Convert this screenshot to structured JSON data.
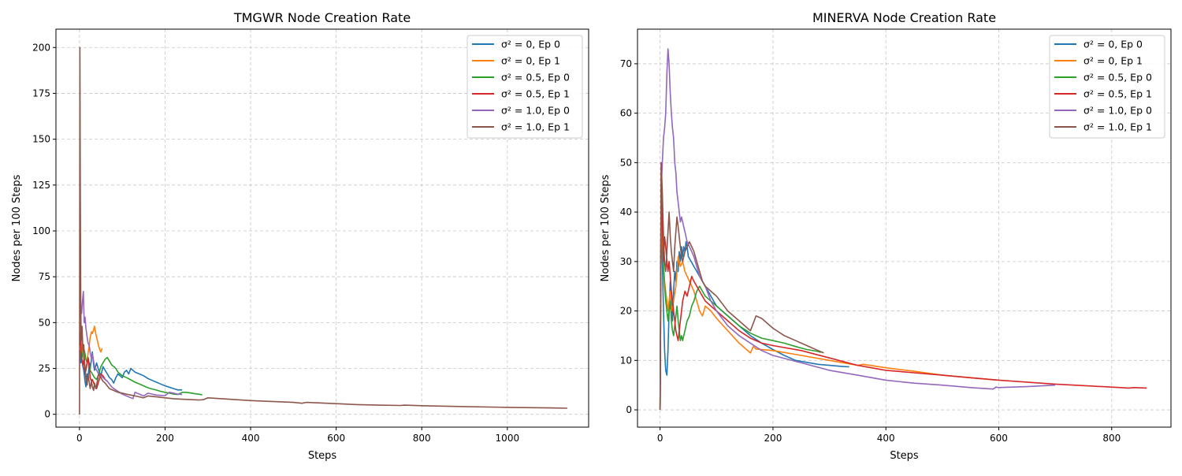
{
  "chart_data": [
    {
      "type": "line",
      "title": "TMGWR Node Creation Rate",
      "xlabel": "Steps",
      "ylabel": "Nodes per 100 Steps",
      "xlim": [
        -55,
        1190
      ],
      "ylim": [
        -7,
        210
      ],
      "xticks": [
        0,
        200,
        400,
        600,
        800,
        1000
      ],
      "yticks": [
        0,
        25,
        50,
        75,
        100,
        125,
        150,
        175,
        200
      ],
      "grid": true,
      "legend_position": "top-right",
      "series": [
        {
          "name": "σ² = 0, Ep 0",
          "color": "#1f77b4",
          "x": [
            1,
            3,
            5,
            8,
            10,
            13,
            15,
            18,
            20,
            23,
            25,
            28,
            30,
            33,
            35,
            40,
            45,
            50,
            55,
            60,
            65,
            70,
            75,
            80,
            85,
            90,
            95,
            100,
            105,
            110,
            115,
            120,
            125,
            130,
            140,
            150,
            160,
            170,
            180,
            190,
            200,
            210,
            220,
            230,
            240
          ],
          "y": [
            35,
            28,
            31,
            26,
            24,
            18,
            15,
            22,
            20,
            28,
            25,
            30,
            34,
            27,
            24,
            28,
            24,
            21,
            26,
            24,
            22,
            20,
            19,
            17,
            20,
            22,
            21,
            20,
            23,
            24,
            22,
            25,
            24,
            23,
            22,
            21,
            19.5,
            18.5,
            17.5,
            16.5,
            15.5,
            14.8,
            14,
            13.3,
            13.3
          ]
        },
        {
          "name": "σ² = 0, Ep 1",
          "color": "#ff7f0e",
          "x": [
            1,
            3,
            5,
            8,
            10,
            13,
            15,
            18,
            20,
            23,
            25,
            28,
            30,
            33,
            35,
            38,
            40,
            43,
            45,
            48,
            50,
            53
          ],
          "y": [
            50,
            42,
            38,
            33,
            30,
            26,
            24,
            29,
            33,
            38,
            42,
            45,
            44,
            46,
            48,
            44,
            42,
            39,
            37,
            35,
            34,
            36
          ]
        },
        {
          "name": "σ² = 0.5, Ep 0",
          "color": "#2ca02c",
          "x": [
            1,
            3,
            5,
            8,
            10,
            13,
            15,
            18,
            20,
            23,
            25,
            30,
            35,
            40,
            45,
            50,
            55,
            60,
            65,
            70,
            75,
            80,
            85,
            90,
            95,
            100,
            110,
            120,
            130,
            140,
            150,
            160,
            170,
            180,
            190,
            200,
            210,
            220,
            230,
            240,
            250,
            260,
            270,
            280,
            287
          ],
          "y": [
            45,
            38,
            30,
            34,
            36,
            33,
            30,
            28,
            31,
            27,
            24,
            22,
            20,
            19,
            22,
            26,
            28,
            30,
            31,
            29,
            27,
            26,
            25,
            23,
            22,
            21,
            20,
            18.8,
            17.5,
            16.5,
            15.5,
            14.5,
            13.8,
            13.2,
            12.5,
            12,
            11.5,
            11,
            10.8,
            12,
            12,
            11.6,
            11.2,
            10.9,
            10.6
          ]
        },
        {
          "name": "σ² = 0.5, Ep 1",
          "color": "#d62728",
          "x": [
            1,
            3,
            5,
            8,
            10,
            13,
            15,
            18,
            20,
            23,
            25,
            28,
            30,
            35,
            40,
            45,
            50,
            55,
            60,
            65
          ],
          "y": [
            45,
            38,
            30,
            27,
            30,
            22,
            24,
            28,
            31,
            25,
            20,
            18,
            19,
            16,
            14,
            18,
            22,
            21,
            19,
            18
          ]
        },
        {
          "name": "σ² = 1.0, Ep 0",
          "color": "#9467bd",
          "x": [
            1,
            3,
            5,
            7,
            9,
            11,
            13,
            15,
            18,
            20,
            23,
            25,
            28,
            30,
            33,
            35,
            40,
            45,
            50,
            55,
            60,
            65,
            70,
            75,
            80,
            90,
            100,
            110,
            120,
            125,
            130,
            140,
            150,
            160,
            170,
            180,
            190,
            200,
            210,
            220,
            230,
            240
          ],
          "y": [
            66,
            58,
            55,
            62,
            67,
            50,
            53,
            47,
            42,
            39,
            37,
            34,
            30,
            33,
            29,
            26,
            24,
            22,
            21,
            20,
            19,
            18,
            16.5,
            15,
            14,
            12.5,
            11,
            10,
            9,
            8.6,
            12,
            11,
            10,
            11.5,
            11,
            10.5,
            10.3,
            10.2,
            12,
            11.5,
            11,
            10.8
          ]
        },
        {
          "name": "σ² = 1.0, Ep 1",
          "color": "#8c564b",
          "x": [
            0,
            1,
            2,
            3,
            4,
            6,
            8,
            10,
            12,
            15,
            18,
            20,
            23,
            25,
            28,
            30,
            33,
            35,
            38,
            40,
            45,
            50,
            55,
            60,
            70,
            80,
            90,
            100,
            110,
            120,
            130,
            140,
            150,
            160,
            180,
            200,
            220,
            240,
            260,
            280,
            290,
            300,
            350,
            400,
            450,
            500,
            520,
            530,
            600,
            650,
            700,
            750,
            760,
            800,
            900,
            1000,
            1100,
            1140
          ],
          "y": [
            0,
            200,
            120,
            60,
            40,
            48,
            35,
            38,
            28,
            20,
            16,
            22,
            17,
            14,
            18,
            15,
            13,
            17,
            14,
            16,
            22,
            20,
            18,
            17,
            14,
            13,
            12,
            11.5,
            11,
            10.5,
            10,
            9.5,
            9,
            10,
            9.5,
            9,
            8.5,
            8.2,
            8,
            7.8,
            8,
            9,
            8.2,
            7.5,
            7,
            6.5,
            6,
            6.5,
            5.8,
            5.3,
            5,
            4.8,
            5,
            4.7,
            4.2,
            3.8,
            3.5,
            3.3
          ]
        }
      ]
    },
    {
      "type": "line",
      "title": "MINERVA Node Creation Rate",
      "xlabel": "Steps",
      "ylabel": "Nodes per 100 Steps",
      "xlim": [
        -40,
        905
      ],
      "ylim": [
        -3.5,
        77
      ],
      "xticks": [
        0,
        200,
        400,
        600,
        800
      ],
      "yticks": [
        0,
        10,
        20,
        30,
        40,
        50,
        60,
        70
      ],
      "grid": true,
      "legend_position": "top-right",
      "series": [
        {
          "name": "σ² = 0, Ep 0",
          "color": "#1f77b4",
          "x": [
            0,
            2,
            4,
            6,
            8,
            10,
            12,
            14,
            16,
            18,
            20,
            22,
            24,
            26,
            28,
            30,
            32,
            34,
            36,
            38,
            40,
            42,
            44,
            46,
            48,
            50,
            55,
            60,
            65,
            70,
            80,
            90,
            100,
            120,
            140,
            160,
            180,
            200,
            220,
            240,
            260,
            280,
            300,
            320,
            335
          ],
          "y": [
            0,
            40,
            30,
            20,
            12,
            8,
            7,
            12,
            20,
            26,
            22,
            18,
            24,
            28,
            26,
            30,
            28,
            32,
            30,
            33,
            31,
            33,
            32,
            34,
            33,
            31,
            30,
            29,
            28,
            27,
            25,
            23,
            21,
            19,
            17,
            15,
            13.5,
            12.2,
            11,
            10,
            9.6,
            9.2,
            9,
            8.8,
            8.7
          ]
        },
        {
          "name": "σ² = 0, Ep 1",
          "color": "#ff7f0e",
          "x": [
            0,
            2,
            4,
            6,
            8,
            10,
            12,
            14,
            16,
            18,
            20,
            24,
            28,
            32,
            36,
            40,
            44,
            48,
            52,
            56,
            60,
            65,
            70,
            75,
            80,
            90,
            100,
            120,
            140,
            160,
            165,
            170,
            200,
            250,
            300,
            350,
            360,
            400,
            450,
            500,
            550,
            600
          ],
          "y": [
            0,
            40,
            35,
            28,
            26,
            24,
            22,
            20,
            22,
            24,
            20,
            22,
            25,
            31,
            29,
            30,
            28,
            27,
            26,
            25,
            24,
            22,
            20,
            19,
            21,
            20,
            18.5,
            16,
            13.5,
            11.5,
            12.8,
            12.3,
            12,
            11,
            10,
            9,
            9.2,
            8.5,
            7.8,
            7,
            6.5,
            6
          ]
        },
        {
          "name": "σ² = 0.5, Ep 0",
          "color": "#2ca02c",
          "x": [
            0,
            2,
            4,
            6,
            8,
            10,
            12,
            14,
            16,
            18,
            20,
            22,
            24,
            26,
            28,
            30,
            32,
            34,
            36,
            38,
            40,
            44,
            48,
            52,
            56,
            60,
            65,
            70,
            75,
            80,
            90,
            100,
            120,
            140,
            160,
            180,
            200,
            220,
            240,
            260,
            280,
            285
          ],
          "y": [
            0,
            42,
            38,
            30,
            25,
            22,
            20,
            18,
            20,
            22,
            18,
            16,
            15,
            17,
            19,
            21,
            18,
            16,
            14,
            15,
            14,
            16,
            18,
            19,
            21,
            22,
            24,
            25,
            24,
            23,
            22,
            21,
            19,
            17,
            15.5,
            14.5,
            14,
            13.5,
            12.8,
            12.2,
            11.8,
            11.6
          ]
        },
        {
          "name": "σ² = 0.5, Ep 1",
          "color": "#d62728",
          "x": [
            0,
            2,
            4,
            6,
            8,
            10,
            12,
            14,
            16,
            18,
            20,
            22,
            24,
            26,
            28,
            30,
            32,
            34,
            36,
            38,
            40,
            44,
            48,
            52,
            56,
            60,
            65,
            70,
            75,
            80,
            90,
            100,
            120,
            140,
            160,
            180,
            200,
            250,
            300,
            350,
            400,
            450,
            500,
            550,
            600,
            650,
            700,
            750,
            800,
            830,
            840,
            862
          ],
          "y": [
            0,
            50,
            38,
            30,
            35,
            33,
            30,
            28,
            30,
            27,
            24,
            22,
            20,
            18,
            16,
            15,
            14,
            16,
            18,
            20,
            22,
            24,
            23,
            25,
            27,
            26,
            25,
            24,
            23,
            22,
            21,
            20,
            18,
            16,
            14.5,
            13.5,
            13,
            12,
            10.5,
            9,
            8,
            7.5,
            7,
            6.5,
            6,
            5.6,
            5.2,
            4.9,
            4.6,
            4.4,
            4.5,
            4.4
          ]
        },
        {
          "name": "σ² = 1.0, Ep 0",
          "color": "#9467bd",
          "x": [
            0,
            2,
            4,
            6,
            8,
            10,
            12,
            14,
            16,
            18,
            20,
            22,
            24,
            26,
            28,
            30,
            32,
            34,
            36,
            38,
            40,
            44,
            48,
            52,
            56,
            60,
            65,
            70,
            75,
            80,
            90,
            100,
            120,
            140,
            160,
            180,
            200,
            250,
            300,
            350,
            400,
            450,
            500,
            550,
            590,
            595,
            600,
            650,
            700
          ],
          "y": [
            0,
            45,
            50,
            55,
            57,
            60,
            68,
            73,
            70,
            64,
            60,
            57,
            55,
            50,
            48,
            44,
            42,
            40,
            38,
            39,
            38,
            36,
            34,
            33,
            32,
            31,
            29,
            27,
            26,
            25,
            22,
            20,
            17,
            15,
            13.5,
            12,
            11,
            9.5,
            8,
            7,
            6,
            5.4,
            5,
            4.5,
            4.2,
            4.6,
            4.5,
            4.7,
            5
          ]
        },
        {
          "name": "σ² = 1.0, Ep 1",
          "color": "#8c564b",
          "x": [
            0,
            2,
            4,
            6,
            8,
            10,
            12,
            14,
            16,
            18,
            20,
            22,
            24,
            26,
            28,
            30,
            32,
            34,
            36,
            38,
            40,
            44,
            48,
            52,
            56,
            60,
            65,
            70,
            75,
            80,
            90,
            100,
            110,
            120,
            130,
            140,
            150,
            160,
            165,
            170,
            180,
            200,
            220,
            240,
            260,
            280,
            290
          ],
          "y": [
            0,
            50,
            44,
            35,
            30,
            28,
            32,
            36,
            40,
            35,
            32,
            30,
            28,
            33,
            36,
            39,
            37,
            35,
            33,
            31,
            30,
            32,
            33,
            34,
            33,
            32,
            30,
            28,
            26,
            25,
            24,
            23,
            21.5,
            20,
            19,
            18,
            17,
            16,
            17.5,
            19,
            18.5,
            16.5,
            15,
            14,
            13,
            12,
            11.5
          ]
        }
      ]
    }
  ]
}
